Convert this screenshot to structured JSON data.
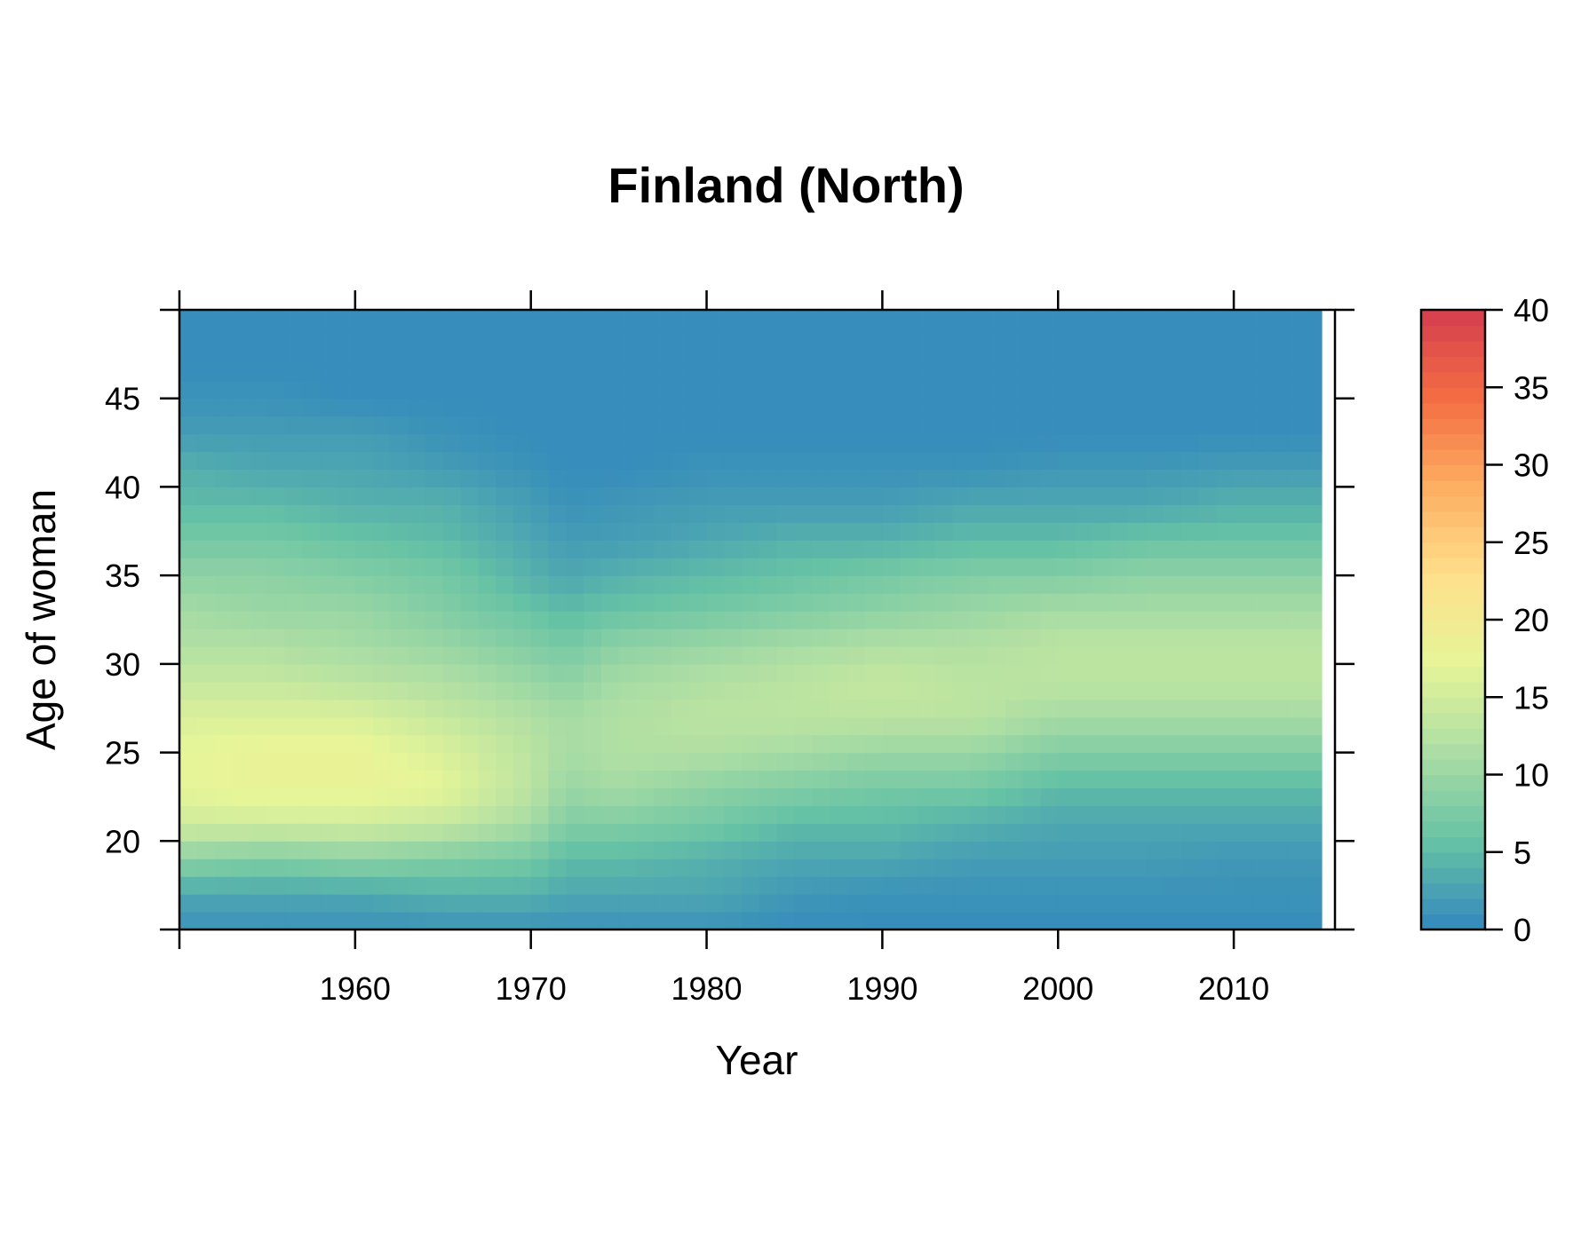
{
  "chart_data": {
    "type": "heatmap",
    "title": "Finland (North)",
    "xlabel": "Year",
    "ylabel": "Age of woman",
    "x_range": [
      1950,
      2015
    ],
    "y_range": [
      15,
      50
    ],
    "x_ticks": [
      1960,
      1970,
      1980,
      1990,
      2000,
      2010
    ],
    "y_ticks": [
      20,
      25,
      30,
      35,
      40,
      45
    ],
    "colorbar": {
      "ticks": [
        0,
        5,
        10,
        15,
        20,
        25,
        30,
        35,
        40
      ],
      "range": [
        0,
        40
      ],
      "colors": [
        "#3288bd",
        "#66c2a5",
        "#abdda4",
        "#e6f598",
        "#fee08b",
        "#fdae61",
        "#f46d43",
        "#d53e4f"
      ]
    },
    "columns_years": [
      1950,
      1955,
      1960,
      1965,
      1970,
      1972,
      1975,
      1980,
      1985,
      1990,
      1995,
      2000,
      2005,
      2010,
      2015
    ],
    "rows_ages": [
      15,
      17,
      19,
      21,
      23,
      25,
      27,
      29,
      31,
      33,
      35,
      37,
      39,
      41,
      43,
      45,
      47,
      49
    ],
    "values": [
      [
        1,
        1,
        1,
        1,
        1,
        1,
        1,
        1,
        0.5,
        0.5,
        0.5,
        0.5,
        0.5,
        0.5,
        0.5
      ],
      [
        3,
        3,
        3,
        4,
        4,
        3,
        3,
        3,
        1.5,
        1,
        1,
        1,
        1,
        1,
        1
      ],
      [
        9,
        8,
        9,
        8,
        7,
        5,
        5,
        4,
        3,
        3,
        2,
        2,
        2,
        1.5,
        1.5
      ],
      [
        15,
        15,
        15,
        14,
        11,
        8,
        8,
        7,
        5,
        5,
        4,
        3,
        3,
        3,
        3
      ],
      [
        17,
        18,
        18,
        17,
        13,
        10,
        11,
        9,
        8,
        7,
        7,
        5,
        5,
        5,
        5
      ],
      [
        17,
        18,
        18,
        16,
        13,
        11,
        12,
        12,
        11,
        10,
        10,
        8,
        8,
        8,
        8
      ],
      [
        16,
        16,
        16,
        14,
        12,
        11,
        12,
        13,
        13,
        13,
        13,
        11,
        11,
        11,
        11
      ],
      [
        14,
        14,
        13,
        12,
        10,
        9,
        11,
        12,
        13,
        14,
        13,
        13,
        13,
        13,
        13
      ],
      [
        12,
        12,
        11,
        10,
        8,
        7,
        9,
        10,
        11,
        12,
        12,
        13,
        13,
        13,
        13
      ],
      [
        11,
        10,
        10,
        8,
        6,
        5,
        6,
        7,
        8,
        9,
        10,
        11,
        11,
        11,
        11
      ],
      [
        9,
        9,
        8,
        7,
        4,
        3,
        4,
        5,
        6,
        7,
        8,
        8,
        9,
        9,
        9
      ],
      [
        7,
        7,
        6,
        5,
        3,
        2,
        2,
        3,
        4,
        4,
        5,
        5,
        6,
        6,
        6
      ],
      [
        5,
        5,
        4,
        4,
        2,
        1,
        1.5,
        2,
        2,
        2,
        3,
        3,
        3,
        4,
        4
      ],
      [
        4,
        3,
        3,
        2,
        1,
        0.5,
        0.5,
        1,
        1,
        1,
        1,
        1.5,
        1.5,
        2,
        2
      ],
      [
        2,
        2,
        2,
        1,
        0.5,
        0.5,
        0.5,
        0.5,
        0.5,
        0.5,
        0.5,
        0.5,
        0.5,
        0.5,
        0.5
      ],
      [
        1,
        1,
        0.5,
        0.5,
        0.5,
        0.5,
        0.5,
        0.5,
        0.5,
        0.5,
        0.5,
        0.5,
        0.5,
        0.5,
        0.5
      ],
      [
        0.5,
        0.5,
        0.5,
        0.5,
        0.5,
        0.5,
        0.5,
        0.5,
        0.5,
        0.5,
        0.5,
        0.5,
        0.5,
        0.5,
        0.5
      ],
      [
        0.5,
        0.5,
        0.5,
        0.5,
        0.5,
        0.5,
        0.5,
        0.5,
        0.5,
        0.5,
        0.5,
        0.5,
        0.5,
        0.5,
        0.5
      ]
    ],
    "grid": false,
    "legend": "colorbar-right"
  }
}
